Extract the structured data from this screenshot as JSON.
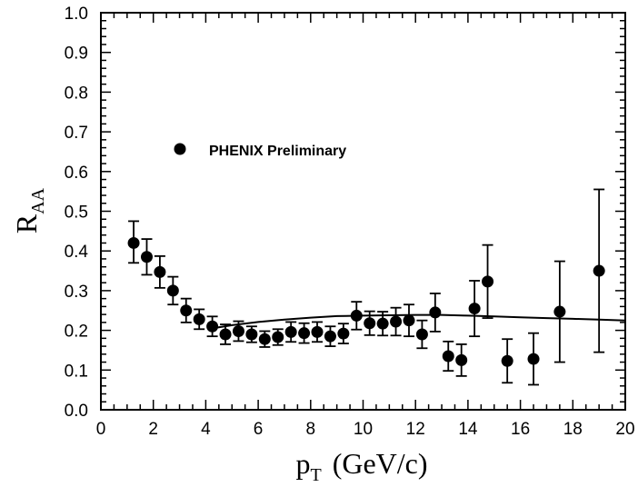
{
  "chart_data": {
    "type": "scatter",
    "title": "",
    "xlabel": {
      "main": "p",
      "sub": "T",
      "rest": "(GeV/c)"
    },
    "ylabel": {
      "main": "R",
      "sub": "AA"
    },
    "xlim": [
      0,
      20
    ],
    "ylim": [
      0,
      1.0
    ],
    "x_ticks": [
      "0",
      "2",
      "4",
      "6",
      "8",
      "10",
      "12",
      "14",
      "16",
      "18",
      "20"
    ],
    "y_ticks": [
      "0.0",
      "0.1",
      "0.2",
      "0.3",
      "0.4",
      "0.5",
      "0.6",
      "0.7",
      "0.8",
      "0.9",
      "1.0"
    ],
    "x_tick_values": [
      0,
      2,
      4,
      6,
      8,
      10,
      12,
      14,
      16,
      18,
      20
    ],
    "y_tick_values": [
      0,
      0.1,
      0.2,
      0.3,
      0.4,
      0.5,
      0.6,
      0.7,
      0.8,
      0.9,
      1.0
    ],
    "grid": false,
    "legend": {
      "label": "PHENIX Preliminary",
      "placement": "upper-left"
    },
    "series": [
      {
        "name": "PHENIX Preliminary",
        "marker": "circle",
        "color": "#000000",
        "points": [
          {
            "x": 1.25,
            "y": 0.42,
            "err_lo": 0.05,
            "err_hi": 0.055
          },
          {
            "x": 1.75,
            "y": 0.385,
            "err_lo": 0.045,
            "err_hi": 0.045
          },
          {
            "x": 2.25,
            "y": 0.347,
            "err_lo": 0.04,
            "err_hi": 0.04
          },
          {
            "x": 2.75,
            "y": 0.3,
            "err_lo": 0.035,
            "err_hi": 0.035
          },
          {
            "x": 3.25,
            "y": 0.25,
            "err_lo": 0.03,
            "err_hi": 0.03
          },
          {
            "x": 3.75,
            "y": 0.228,
            "err_lo": 0.025,
            "err_hi": 0.025
          },
          {
            "x": 4.25,
            "y": 0.21,
            "err_lo": 0.025,
            "err_hi": 0.025
          },
          {
            "x": 4.75,
            "y": 0.19,
            "err_lo": 0.025,
            "err_hi": 0.025
          },
          {
            "x": 5.25,
            "y": 0.198,
            "err_lo": 0.025,
            "err_hi": 0.025
          },
          {
            "x": 5.75,
            "y": 0.19,
            "err_lo": 0.02,
            "err_hi": 0.02
          },
          {
            "x": 6.25,
            "y": 0.178,
            "err_lo": 0.02,
            "err_hi": 0.02
          },
          {
            "x": 6.75,
            "y": 0.183,
            "err_lo": 0.02,
            "err_hi": 0.02
          },
          {
            "x": 7.25,
            "y": 0.196,
            "err_lo": 0.025,
            "err_hi": 0.025
          },
          {
            "x": 7.75,
            "y": 0.193,
            "err_lo": 0.025,
            "err_hi": 0.025
          },
          {
            "x": 8.25,
            "y": 0.196,
            "err_lo": 0.025,
            "err_hi": 0.025
          },
          {
            "x": 8.75,
            "y": 0.185,
            "err_lo": 0.025,
            "err_hi": 0.025
          },
          {
            "x": 9.25,
            "y": 0.192,
            "err_lo": 0.025,
            "err_hi": 0.025
          },
          {
            "x": 9.75,
            "y": 0.237,
            "err_lo": 0.035,
            "err_hi": 0.035
          },
          {
            "x": 10.25,
            "y": 0.218,
            "err_lo": 0.03,
            "err_hi": 0.03
          },
          {
            "x": 10.75,
            "y": 0.217,
            "err_lo": 0.03,
            "err_hi": 0.03
          },
          {
            "x": 11.25,
            "y": 0.222,
            "err_lo": 0.035,
            "err_hi": 0.035
          },
          {
            "x": 11.75,
            "y": 0.225,
            "err_lo": 0.04,
            "err_hi": 0.04
          },
          {
            "x": 12.25,
            "y": 0.19,
            "err_lo": 0.035,
            "err_hi": 0.035
          },
          {
            "x": 12.75,
            "y": 0.245,
            "err_lo": 0.048,
            "err_hi": 0.048
          },
          {
            "x": 13.25,
            "y": 0.135,
            "err_lo": 0.037,
            "err_hi": 0.037
          },
          {
            "x": 13.75,
            "y": 0.125,
            "err_lo": 0.04,
            "err_hi": 0.04
          },
          {
            "x": 14.25,
            "y": 0.255,
            "err_lo": 0.07,
            "err_hi": 0.07
          },
          {
            "x": 14.75,
            "y": 0.323,
            "err_lo": 0.092,
            "err_hi": 0.092
          },
          {
            "x": 15.5,
            "y": 0.123,
            "err_lo": 0.055,
            "err_hi": 0.055
          },
          {
            "x": 16.5,
            "y": 0.128,
            "err_lo": 0.065,
            "err_hi": 0.065
          },
          {
            "x": 17.5,
            "y": 0.247,
            "err_lo": 0.127,
            "err_hi": 0.127
          },
          {
            "x": 19.0,
            "y": 0.35,
            "err_lo": 0.205,
            "err_hi": 0.205
          }
        ]
      },
      {
        "name": "",
        "type": "line",
        "color": "#000000",
        "x": [
          4.25,
          5,
          6,
          7,
          8,
          9,
          10,
          11,
          12,
          13,
          14,
          15,
          16,
          17,
          18,
          19,
          20
        ],
        "y": [
          0.205,
          0.213,
          0.221,
          0.227,
          0.232,
          0.236,
          0.237,
          0.238,
          0.239,
          0.239,
          0.237,
          0.235,
          0.233,
          0.231,
          0.229,
          0.227,
          0.225
        ]
      }
    ]
  }
}
